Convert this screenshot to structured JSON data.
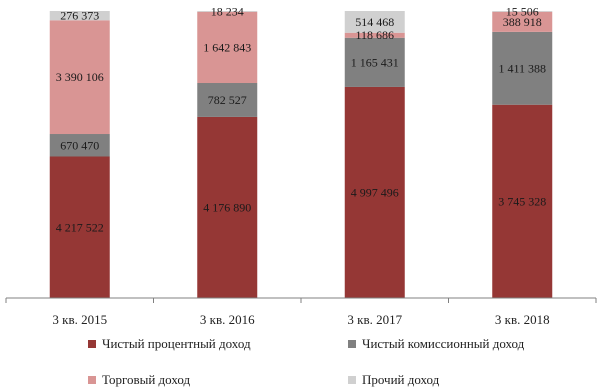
{
  "chart_data": {
    "type": "bar",
    "stacked": true,
    "categories": [
      "3 кв. 2015",
      "3 кв. 2016",
      "3 кв. 2017",
      "3 кв. 2018"
    ],
    "series": [
      {
        "name": "Чистый процентный доход",
        "color": "#953735",
        "values": [
          4217522,
          4176890,
          4997496,
          3745328
        ],
        "labels": [
          "4 217 522",
          "4 176 890",
          "4 997 496",
          "3 745 328"
        ]
      },
      {
        "name": "Чистый комиссионный доход",
        "color": "#808080",
        "values": [
          670470,
          782527,
          1165431,
          1411388
        ],
        "labels": [
          "670 470",
          "782 527",
          "1 165 431",
          "1 411 388"
        ]
      },
      {
        "name": "Торговый доход",
        "color": "#d99594",
        "values": [
          3390106,
          1642843,
          118686,
          388918
        ],
        "labels": [
          "3 390 106",
          "1 642 843",
          "118 686",
          "388 918"
        ]
      },
      {
        "name": "Прочий доход",
        "color": "#d0d0d0",
        "values": [
          276373,
          18234,
          514468,
          15506
        ],
        "labels": [
          "276 373",
          "18 234",
          "514 468",
          "15 506"
        ]
      }
    ],
    "title": "",
    "xlabel": "",
    "ylabel": "",
    "grid": false,
    "legend_position": "bottom"
  }
}
